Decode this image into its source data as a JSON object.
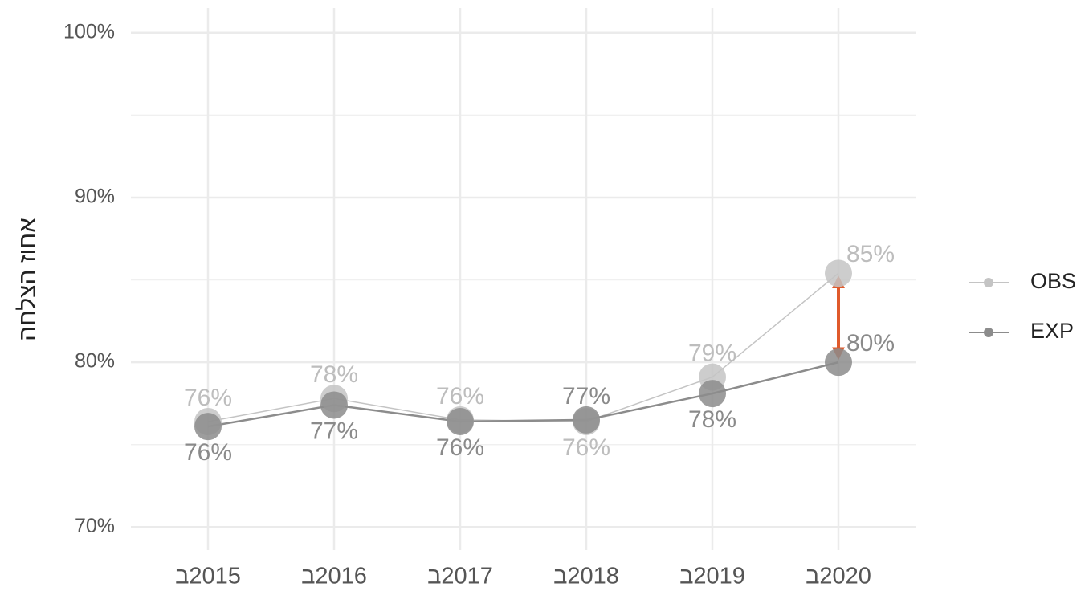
{
  "chart_data": {
    "type": "line",
    "y_label": "אחוז הצלחה",
    "categories": [
      "ב2015",
      "ב2016",
      "ב2017",
      "ב2018",
      "ב2019",
      "ב2020"
    ],
    "series": [
      {
        "name": "OBS",
        "color": "#c4c4c4",
        "label_color": "#bdbdbd",
        "values": [
          76.4,
          77.8,
          76.5,
          76.4,
          79.1,
          85.4
        ],
        "value_labels": [
          "76%",
          "78%",
          "76%",
          "76%",
          "79%",
          "85%"
        ]
      },
      {
        "name": "EXP",
        "color": "#8c8c8c",
        "label_color": "#8a8a8a",
        "values": [
          76.1,
          77.4,
          76.4,
          76.5,
          78.1,
          80.0
        ],
        "value_labels": [
          "76%",
          "77%",
          "76%",
          "77%",
          "78%",
          "80%"
        ]
      }
    ],
    "ylim": [
      68.6,
      101.5
    ],
    "yticks": [
      {
        "value": 70,
        "label": "70%"
      },
      {
        "value": 80,
        "label": "80%"
      },
      {
        "value": 90,
        "label": "90%"
      },
      {
        "value": 100,
        "label": "100%"
      }
    ],
    "yminor": [
      75,
      85,
      95
    ],
    "grid": true,
    "legend": "right",
    "arrow_color": "#e05a2b"
  }
}
